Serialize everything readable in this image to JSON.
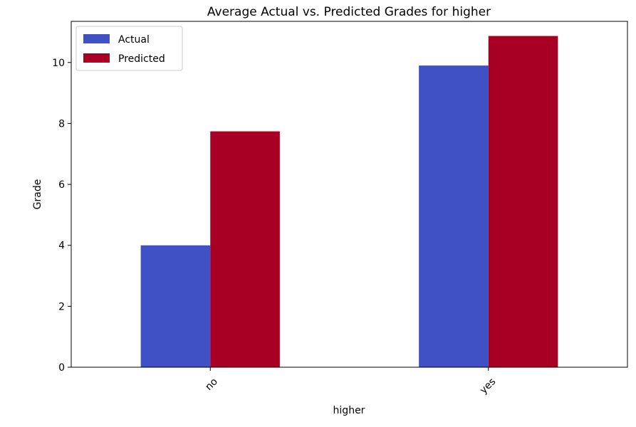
{
  "chart_data": {
    "type": "bar",
    "title": "Average Actual vs. Predicted Grades for higher",
    "xlabel": "higher",
    "ylabel": "Grade",
    "categories": [
      "no",
      "yes"
    ],
    "series": [
      {
        "name": "Actual",
        "color": "#3f51c4",
        "values": [
          4.0,
          9.9
        ]
      },
      {
        "name": "Predicted",
        "color": "#a80024",
        "values": [
          7.74,
          10.87
        ]
      }
    ],
    "ylim": [
      0,
      11.35
    ],
    "yticks": [
      0,
      2,
      4,
      6,
      8,
      10
    ],
    "grid": false,
    "legend_position": "top-left",
    "x_tick_rotation": 45
  }
}
